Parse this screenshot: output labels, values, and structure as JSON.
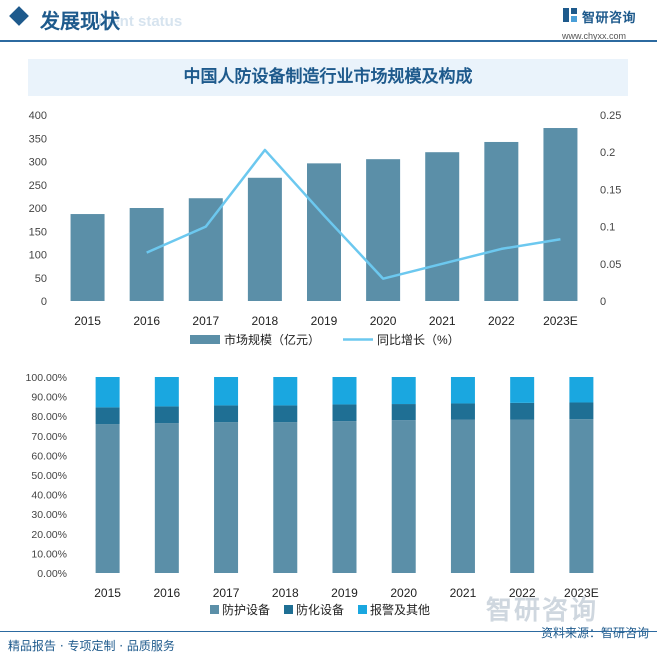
{
  "header": {
    "title": "发展现状",
    "subtitle": "ment status",
    "logo_name": "智研咨询",
    "logo_url": "www.chyxx.com"
  },
  "chart_title": "中国人防设备制造行业市场规模及构成",
  "colors": {
    "bar": "#5b8fa8",
    "line": "#6cc8ef",
    "stack_protect": "#5b8fa8",
    "stack_chem": "#1f6f94",
    "stack_other": "#1aa7e0",
    "brand": "#1e5a8c"
  },
  "chart_data": [
    {
      "type": "bar+line",
      "categories": [
        "2015",
        "2016",
        "2017",
        "2018",
        "2019",
        "2020",
        "2021",
        "2022",
        "2023E"
      ],
      "series": [
        {
          "name": "市场规模（亿元）",
          "kind": "bar",
          "axis": "left",
          "values": [
            187,
            200,
            221,
            265,
            296,
            305,
            320,
            342,
            372
          ]
        },
        {
          "name": "同比增长（%）",
          "kind": "line",
          "axis": "right",
          "values": [
            null,
            0.065,
            0.1,
            0.203,
            0.115,
            0.03,
            0.05,
            0.07,
            0.083
          ]
        }
      ],
      "y_left": {
        "min": 0,
        "max": 400,
        "ticks": [
          "0",
          "50",
          "100",
          "150",
          "200",
          "250",
          "300",
          "350",
          "400"
        ]
      },
      "y_right": {
        "min": 0,
        "max": 0.25,
        "ticks": [
          "0",
          "0.05",
          "0.1",
          "0.15",
          "0.2",
          "0.25"
        ]
      },
      "legend_position": "bottom"
    },
    {
      "type": "bar",
      "stacked": true,
      "percent": true,
      "categories": [
        "2015",
        "2016",
        "2017",
        "2018",
        "2019",
        "2020",
        "2021",
        "2022",
        "2023E"
      ],
      "series": [
        {
          "name": "防护设备",
          "values": [
            76,
            76.5,
            77,
            77,
            77.5,
            78,
            78.3,
            78.3,
            78.5
          ]
        },
        {
          "name": "防化设备",
          "values": [
            8.5,
            8.5,
            8.5,
            8.5,
            8.5,
            8.2,
            8.2,
            8.5,
            8.5
          ]
        },
        {
          "name": "报警及其他",
          "values": [
            15.5,
            15,
            14.5,
            14.5,
            14,
            13.8,
            13.5,
            13.2,
            13
          ]
        }
      ],
      "y": {
        "min": 0,
        "max": 100,
        "ticks": [
          "0.00%",
          "10.00%",
          "20.00%",
          "30.00%",
          "40.00%",
          "50.00%",
          "60.00%",
          "70.00%",
          "80.00%",
          "90.00%",
          "100.00%"
        ]
      },
      "legend_position": "bottom"
    }
  ],
  "footer": {
    "left": "精品报告 · 专项定制 · 品质服务",
    "source": "资料来源：智研咨询",
    "watermark": "智研咨询"
  }
}
